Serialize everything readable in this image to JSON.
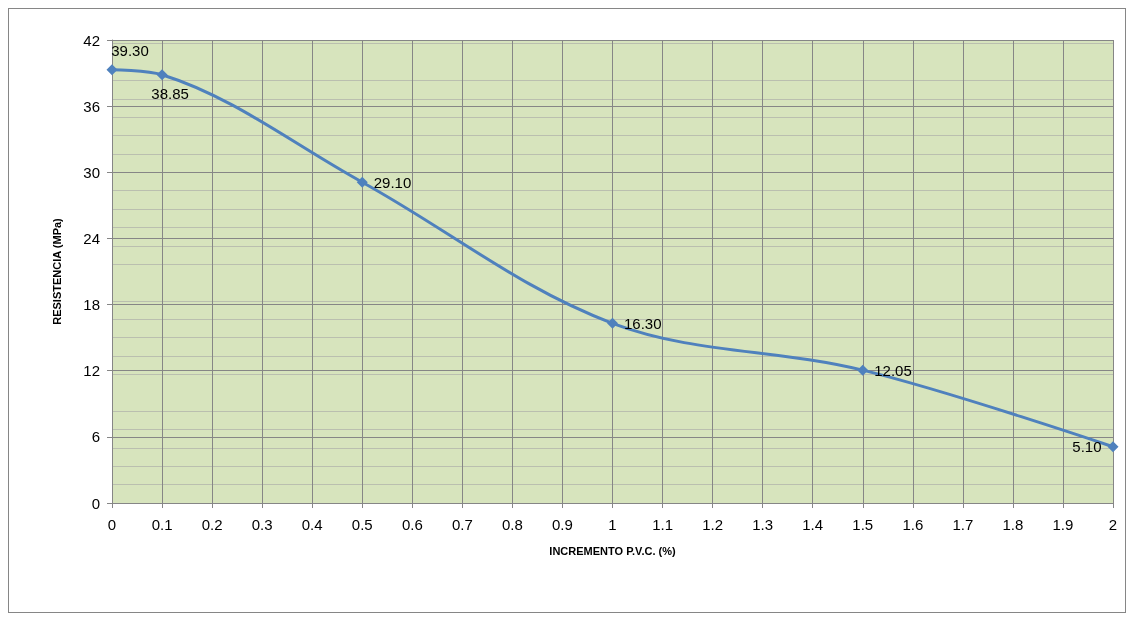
{
  "chart_data": {
    "type": "line",
    "xlabel": "INCREMENTO P.V.C. (%)",
    "ylabel": "RESISTENCIA (MPa)",
    "x": [
      0,
      0.1,
      0.5,
      1,
      1.5,
      2
    ],
    "series": [
      {
        "color": "#4f81bd",
        "values": [
          39.3,
          38.85,
          29.1,
          16.3,
          12.05,
          5.1
        ],
        "value_labels": [
          "39.30",
          "38.85",
          "29.10",
          "16.30",
          "12.05",
          "5.10"
        ]
      }
    ],
    "xlim": [
      0,
      2
    ],
    "xticks": [
      0,
      0.1,
      0.2,
      0.3,
      0.4,
      0.5,
      0.6,
      0.7,
      0.8,
      0.9,
      1,
      1.1,
      1.2,
      1.3,
      1.4,
      1.5,
      1.6,
      1.7,
      1.8,
      1.9,
      2
    ],
    "ylim": [
      0,
      42
    ],
    "yticks": [
      0,
      6,
      12,
      18,
      24,
      30,
      36,
      42
    ],
    "grid": true,
    "marker": "diamond",
    "line_style": "solid"
  }
}
